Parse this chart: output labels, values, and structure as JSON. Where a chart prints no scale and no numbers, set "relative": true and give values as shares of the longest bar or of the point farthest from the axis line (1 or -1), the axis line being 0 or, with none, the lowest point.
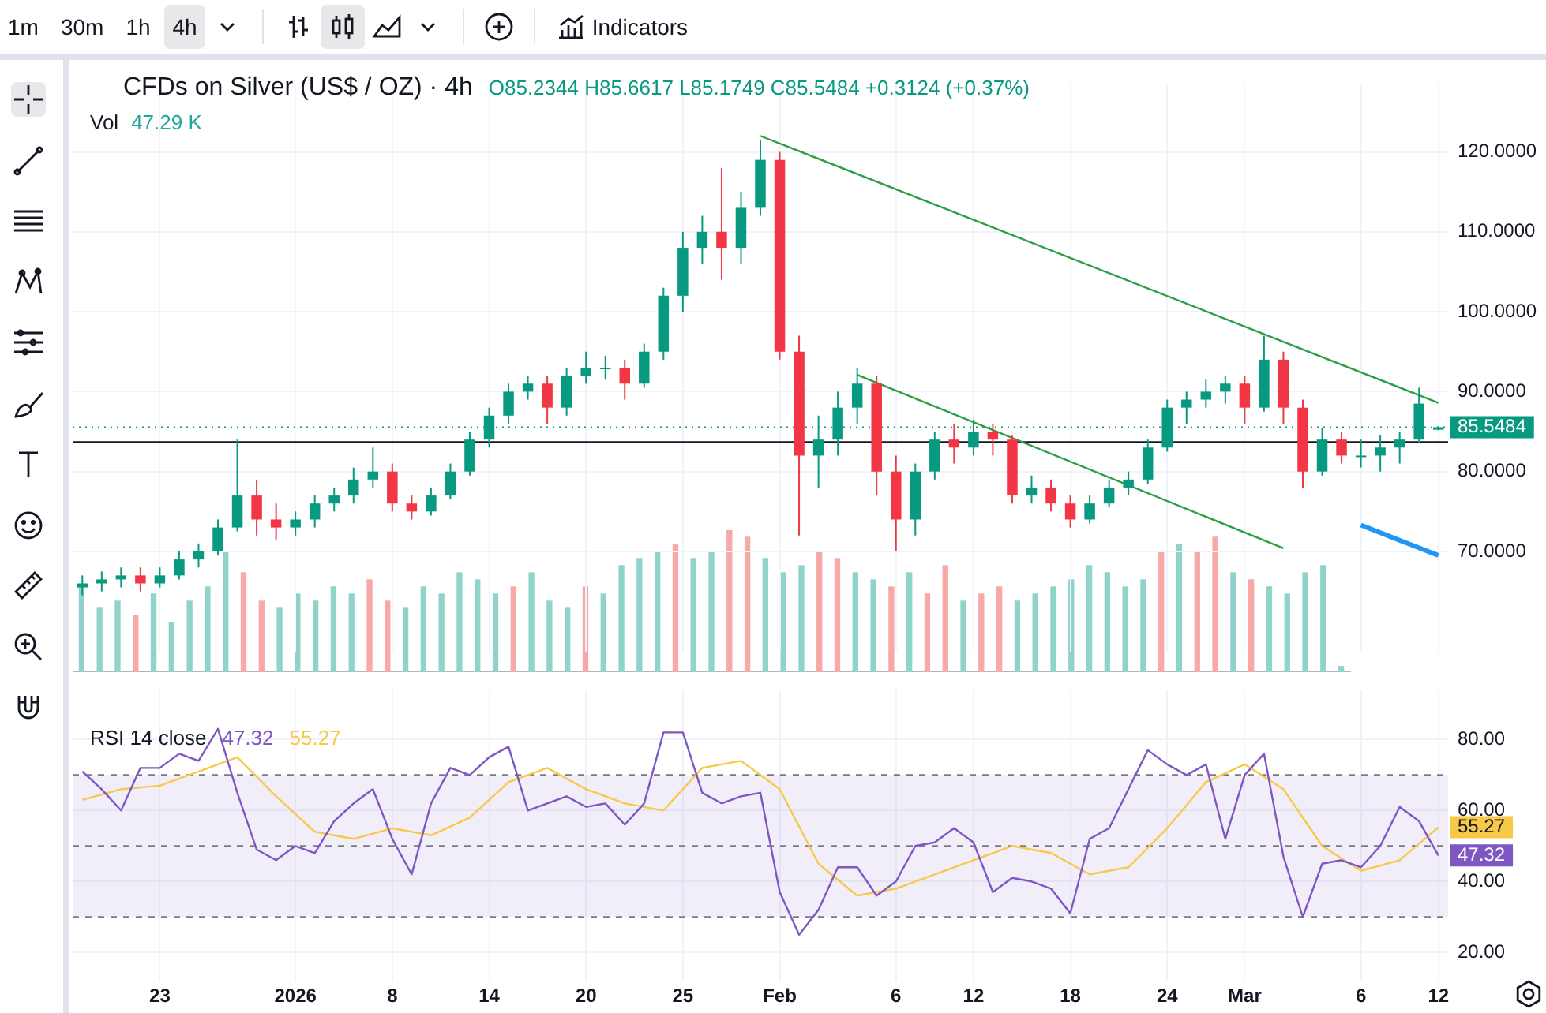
{
  "chart_data": [
    {
      "type": "candlestick",
      "title": "CFDs on Silver (US$ / OZ) · 4h",
      "annotations": [
        "O85.2344 H85.6617 L85.1749 C85.5484 +0.3124 (+0.37%)",
        "1m",
        "30m",
        "1h",
        "4h",
        "Indicators"
      ],
      "categories": [
        null,
        null,
        null,
        null,
        null,
        null,
        null,
        null,
        null,
        null,
        null,
        null,
        null,
        null,
        null,
        null,
        null,
        null,
        null,
        null,
        null,
        null,
        null,
        null,
        null,
        null,
        null,
        null,
        null,
        null,
        null,
        null,
        null,
        null,
        null,
        null,
        null,
        null,
        null,
        null,
        null,
        null,
        null,
        null,
        null,
        null,
        null,
        null,
        null,
        null,
        null,
        null,
        null,
        null,
        null,
        null,
        null,
        null,
        null,
        null,
        null,
        null,
        null,
        null,
        null,
        null,
        null,
        null,
        null,
        null,
        null
      ],
      "ohlc": [
        [
          65.5,
          67,
          64.5,
          66
        ],
        [
          66,
          67.5,
          65,
          66.5
        ],
        [
          66.5,
          68,
          65.5,
          67
        ],
        [
          67,
          68,
          65,
          66
        ],
        [
          66,
          68,
          65.5,
          67
        ],
        [
          67,
          70,
          66.5,
          69
        ],
        [
          69,
          71,
          68,
          70
        ],
        [
          70,
          74,
          69.5,
          73
        ],
        [
          73,
          84,
          72.5,
          77
        ],
        [
          77,
          79,
          72,
          74
        ],
        [
          74,
          76,
          71.5,
          73
        ],
        [
          73,
          75,
          72,
          74
        ],
        [
          74,
          77,
          73,
          76
        ],
        [
          76,
          78,
          75,
          77
        ],
        [
          77,
          80.5,
          76,
          79
        ],
        [
          79,
          83,
          78,
          80
        ],
        [
          80,
          81,
          75,
          76
        ],
        [
          76,
          77,
          74,
          75
        ],
        [
          75,
          78,
          74.5,
          77
        ],
        [
          77,
          81,
          76.5,
          80
        ],
        [
          80,
          85,
          79.5,
          84
        ],
        [
          84,
          88,
          83,
          87
        ],
        [
          87,
          91,
          86,
          90
        ],
        [
          90,
          92,
          89,
          91
        ],
        [
          91,
          92,
          86,
          88
        ],
        [
          88,
          93,
          87,
          92
        ],
        [
          92,
          95,
          91,
          93
        ],
        [
          93,
          94.5,
          91.5,
          93
        ],
        [
          93,
          94,
          89,
          91
        ],
        [
          91,
          96,
          90.5,
          95
        ],
        [
          95,
          103,
          94,
          102
        ],
        [
          102,
          110,
          100,
          108
        ],
        [
          108,
          112,
          106,
          110
        ],
        [
          110,
          118,
          104,
          108
        ],
        [
          108,
          115,
          106,
          113
        ],
        [
          113,
          121.5,
          112,
          119
        ],
        [
          119,
          120,
          94,
          95
        ],
        [
          95,
          97,
          72,
          82
        ],
        [
          82,
          87,
          78,
          84
        ],
        [
          84,
          90,
          82,
          88
        ],
        [
          88,
          93,
          86,
          91
        ],
        [
          91,
          92,
          77,
          80
        ],
        [
          80,
          82,
          70,
          74
        ],
        [
          74,
          81,
          72,
          80
        ],
        [
          80,
          85,
          79,
          84
        ],
        [
          84,
          86,
          81,
          83
        ],
        [
          83,
          86.5,
          82,
          85
        ],
        [
          85,
          86,
          82,
          84
        ],
        [
          84,
          84.5,
          76,
          77
        ],
        [
          77,
          79.5,
          76,
          78
        ],
        [
          78,
          79,
          75,
          76
        ],
        [
          76,
          77,
          73,
          74
        ],
        [
          74,
          77,
          73.5,
          76
        ],
        [
          76,
          79,
          75.5,
          78
        ],
        [
          78,
          80,
          77,
          79
        ],
        [
          79,
          84,
          78.5,
          83
        ],
        [
          83,
          89,
          82.5,
          88
        ],
        [
          88,
          90,
          86,
          89
        ],
        [
          89,
          91.5,
          88,
          90
        ],
        [
          90,
          92,
          88.5,
          91
        ],
        [
          91,
          92,
          86,
          88
        ],
        [
          88,
          97,
          87.5,
          94
        ],
        [
          94,
          95,
          86,
          88
        ],
        [
          88,
          89,
          78,
          80
        ],
        [
          80,
          85.5,
          79.5,
          84
        ],
        [
          84,
          85,
          81,
          82
        ],
        [
          82,
          84,
          80.5,
          82
        ],
        [
          82,
          84.5,
          80,
          83
        ],
        [
          83,
          85,
          81,
          84
        ],
        [
          84,
          90.5,
          83.5,
          88.5
        ],
        [
          85.2344,
          85.6617,
          85.1749,
          85.5484
        ]
      ],
      "series": [
        {
          "type": "line",
          "color": "#2e9e44",
          "values": [
            null,
            null,
            null,
            null,
            null,
            null,
            null,
            null,
            null,
            null,
            null,
            null,
            null,
            null,
            null,
            null,
            null,
            null,
            null,
            null,
            null,
            null,
            null,
            null,
            null,
            null,
            null,
            null,
            null,
            null,
            null,
            null,
            null,
            null,
            null,
            122,
            null,
            null,
            null,
            null,
            null,
            null,
            null,
            null,
            null,
            null,
            null,
            null,
            null,
            null,
            null,
            null,
            null,
            null,
            null,
            null,
            null,
            null,
            null,
            null,
            null,
            null,
            null,
            null,
            null,
            null,
            null,
            null,
            null,
            null,
            88.6
          ]
        },
        {
          "type": "line",
          "color": "#2e9e44",
          "values": [
            null,
            null,
            null,
            null,
            null,
            null,
            null,
            null,
            null,
            null,
            null,
            null,
            null,
            null,
            null,
            null,
            null,
            null,
            null,
            null,
            null,
            null,
            null,
            null,
            null,
            null,
            null,
            null,
            null,
            null,
            null,
            null,
            null,
            null,
            null,
            null,
            null,
            null,
            null,
            null,
            92.1,
            null,
            null,
            null,
            null,
            null,
            null,
            null,
            null,
            null,
            null,
            null,
            null,
            null,
            null,
            null,
            null,
            null,
            null,
            null,
            null,
            null,
            70.4,
            null,
            null,
            null,
            null,
            null,
            null,
            null,
            null
          ]
        },
        {
          "type": "line",
          "color": "#2196f3",
          "values": [
            null,
            null,
            null,
            null,
            null,
            null,
            null,
            null,
            null,
            null,
            null,
            null,
            null,
            null,
            null,
            null,
            null,
            null,
            null,
            null,
            null,
            null,
            null,
            null,
            null,
            null,
            null,
            null,
            null,
            null,
            null,
            null,
            null,
            null,
            null,
            null,
            null,
            null,
            null,
            null,
            null,
            null,
            null,
            null,
            null,
            null,
            null,
            null,
            null,
            null,
            null,
            null,
            null,
            null,
            null,
            null,
            null,
            null,
            null,
            null,
            null,
            null,
            null,
            null,
            null,
            null,
            73.3,
            null,
            null,
            null,
            69.5
          ]
        }
      ],
      "ylim": [
        57.5,
        128.5
      ],
      "yticks": [
        {
          "value": 70,
          "label": "70.0000"
        },
        {
          "value": 80,
          "label": "80.0000"
        },
        {
          "value": 90,
          "label": "90.0000"
        },
        {
          "value": 100,
          "label": "100.0000"
        },
        {
          "value": 110,
          "label": "110.0000"
        },
        {
          "value": 120,
          "label": "120.0000"
        }
      ],
      "ref_lines": [
        {
          "axis": "y",
          "value": 85.5484,
          "label": "85.5484",
          "color": "#089981",
          "line_style": "dotted"
        },
        {
          "axis": "y",
          "value": 83.7,
          "color": "#131722"
        }
      ],
      "tick_labels": "y",
      "grid": true
    },
    {
      "type": "bar",
      "title": "Vol",
      "subtitle": "47.29 K",
      "relative": true,
      "categories": [
        null,
        null,
        null,
        null,
        null,
        null,
        null,
        null,
        null,
        null,
        null,
        null,
        null,
        null,
        null,
        null,
        null,
        null,
        null,
        null,
        null,
        null,
        null,
        null,
        null,
        null,
        null,
        null,
        null,
        null,
        null,
        null,
        null,
        null,
        null,
        null,
        null,
        null,
        null,
        null,
        null,
        null,
        null,
        null,
        null,
        null,
        null,
        null,
        null,
        null,
        null,
        null,
        null,
        null,
        null,
        null,
        null,
        null,
        null,
        null,
        null,
        null,
        null,
        null,
        null,
        null,
        null,
        null,
        null,
        null,
        null
      ],
      "values": [
        0.6,
        0.45,
        0.5,
        0.4,
        0.55,
        0.35,
        0.5,
        0.6,
        0.85,
        0.7,
        0.5,
        0.45,
        0.55,
        0.5,
        0.6,
        0.55,
        0.65,
        0.5,
        0.45,
        0.6,
        0.55,
        0.7,
        0.65,
        0.55,
        0.6,
        0.7,
        0.5,
        0.45,
        0.6,
        0.55,
        0.75,
        0.8,
        0.85,
        0.9,
        0.8,
        0.85,
        1,
        0.95,
        0.8,
        0.7,
        0.75,
        0.85,
        0.8,
        0.7,
        0.65,
        0.6,
        0.7,
        0.55,
        0.75,
        0.5,
        0.55,
        0.6,
        0.5,
        0.55,
        0.6,
        0.65,
        0.75,
        0.7,
        0.6,
        0.65,
        0.85,
        0.9,
        0.85,
        0.95,
        0.7,
        0.65,
        0.6,
        0.55,
        0.7,
        0.75,
        0.04
      ],
      "colors": [
        "#8fd3cb",
        "#8fd3cb",
        "#8fd3cb",
        "#f7a9a8",
        "#8fd3cb",
        "#8fd3cb",
        "#8fd3cb",
        "#8fd3cb",
        "#8fd3cb",
        "#f7a9a8",
        "#f7a9a8",
        "#8fd3cb",
        "#8fd3cb",
        "#8fd3cb",
        "#8fd3cb",
        "#8fd3cb",
        "#f7a9a8",
        "#f7a9a8",
        "#8fd3cb",
        "#8fd3cb",
        "#8fd3cb",
        "#8fd3cb",
        "#8fd3cb",
        "#8fd3cb",
        "#f7a9a8",
        "#8fd3cb",
        "#8fd3cb",
        "#8fd3cb",
        "#f7a9a8",
        "#8fd3cb",
        "#8fd3cb",
        "#8fd3cb",
        "#8fd3cb",
        "#f7a9a8",
        "#8fd3cb",
        "#8fd3cb",
        "#f7a9a8",
        "#f7a9a8",
        "#8fd3cb",
        "#8fd3cb",
        "#8fd3cb",
        "#f7a9a8",
        "#f7a9a8",
        "#8fd3cb",
        "#8fd3cb",
        "#f7a9a8",
        "#8fd3cb",
        "#f7a9a8",
        "#f7a9a8",
        "#8fd3cb",
        "#f7a9a8",
        "#f7a9a8",
        "#8fd3cb",
        "#8fd3cb",
        "#8fd3cb",
        "#8fd3cb",
        "#8fd3cb",
        "#8fd3cb",
        "#8fd3cb",
        "#8fd3cb",
        "#f7a9a8",
        "#8fd3cb",
        "#f7a9a8",
        "#f7a9a8",
        "#8fd3cb",
        "#f7a9a8",
        "#8fd3cb",
        "#8fd3cb",
        "#8fd3cb",
        "#8fd3cb",
        "#8fd3cb"
      ],
      "tick_labels": false
    },
    {
      "type": "line",
      "title": "RSI 14 close",
      "categories": [
        null,
        null,
        null,
        null,
        "23",
        null,
        null,
        null,
        null,
        null,
        null,
        "2026",
        null,
        null,
        null,
        null,
        "8",
        null,
        null,
        null,
        null,
        "14",
        null,
        null,
        null,
        null,
        "20",
        null,
        null,
        null,
        null,
        "25",
        null,
        null,
        null,
        null,
        "Feb",
        null,
        null,
        null,
        null,
        null,
        "6",
        null,
        null,
        null,
        "12",
        null,
        null,
        null,
        null,
        "18",
        null,
        null,
        null,
        null,
        "24",
        null,
        null,
        null,
        "Mar",
        null,
        null,
        null,
        null,
        null,
        "6",
        null,
        null,
        null,
        "12"
      ],
      "series": [
        {
          "color": "#7e57c2",
          "values": [
            71,
            66,
            60,
            72,
            72,
            76,
            74,
            83,
            65,
            49,
            46,
            50,
            48,
            57,
            62,
            66,
            52,
            42,
            62,
            72,
            70,
            75,
            78,
            60,
            62,
            64,
            61,
            62,
            56,
            62,
            82,
            82,
            65,
            62,
            64,
            65,
            37,
            25,
            32,
            44,
            44,
            36,
            40,
            50,
            51,
            55,
            51,
            37,
            41,
            40,
            38,
            31,
            52,
            55,
            66,
            77,
            73,
            70,
            73,
            52,
            70,
            76,
            47,
            30,
            45,
            46,
            44,
            50,
            61,
            57,
            47.32
          ]
        },
        {
          "color": "#f7c948",
          "values": [
            63,
            null,
            66,
            null,
            67,
            null,
            71,
            null,
            75,
            null,
            64,
            null,
            54,
            null,
            52,
            null,
            55,
            null,
            53,
            null,
            58,
            null,
            68,
            null,
            72,
            null,
            66,
            null,
            62,
            null,
            60,
            null,
            72,
            null,
            74,
            null,
            66,
            null,
            45,
            null,
            36,
            null,
            38,
            null,
            42,
            null,
            46,
            null,
            50,
            null,
            48,
            null,
            42,
            null,
            44,
            null,
            55,
            null,
            68,
            null,
            73,
            null,
            66,
            null,
            50,
            null,
            43,
            null,
            46,
            null,
            55.27
          ]
        }
      ],
      "annotations": [
        "47.32",
        "55.27"
      ],
      "ylim": [
        12,
        94
      ],
      "yticks": [
        {
          "value": 20,
          "label": "20.00"
        },
        {
          "value": 40,
          "label": "40.00"
        },
        {
          "value": 60,
          "label": "60.00"
        },
        {
          "value": 80,
          "label": "80.00"
        }
      ],
      "bands": [
        {
          "axis": "y",
          "from": 30,
          "to": 70,
          "color": "#7e57c2"
        }
      ],
      "ref_lines": [
        {
          "axis": "y",
          "value": 70,
          "color": "#787b86",
          "line_style": "dashed"
        },
        {
          "axis": "y",
          "value": 50,
          "color": "#787b86",
          "line_style": "dashed"
        },
        {
          "axis": "y",
          "value": 30,
          "color": "#787b86",
          "line_style": "dashed"
        }
      ],
      "grid": true
    }
  ]
}
